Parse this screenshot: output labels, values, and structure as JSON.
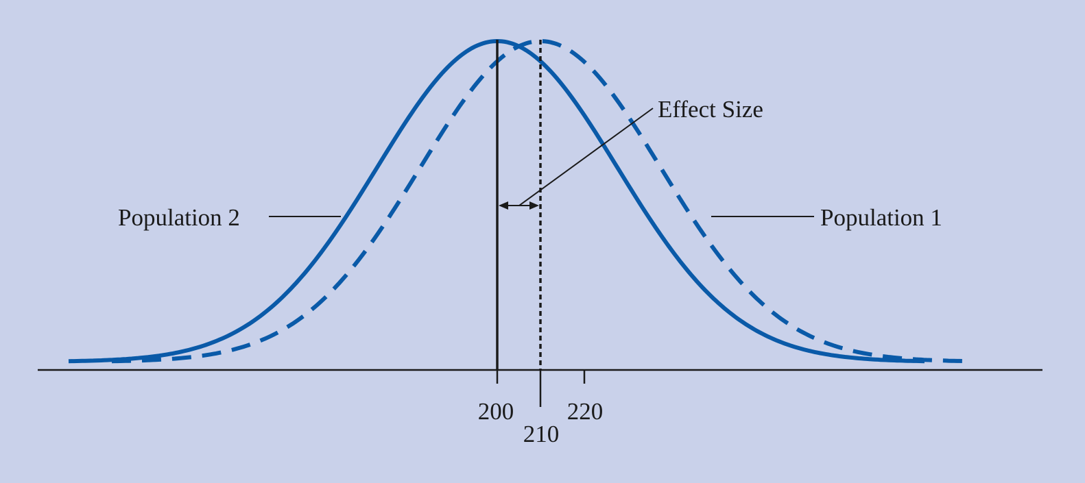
{
  "diagram": {
    "labels": {
      "effect_size": "Effect Size",
      "population_1": "Population 1",
      "population_2": "Population 2"
    },
    "tick_labels": [
      "200",
      "210",
      "220"
    ],
    "colors": {
      "background": "#c9d1ea",
      "curve": "#0a5aa8",
      "ink": "#1a1a1a"
    },
    "population_2": {
      "mean": 200,
      "style": "solid"
    },
    "population_1": {
      "mean": 210,
      "style": "dashed"
    }
  }
}
